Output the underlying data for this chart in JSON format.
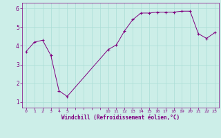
{
  "x": [
    0,
    1,
    2,
    3,
    4,
    5,
    10,
    11,
    12,
    13,
    14,
    15,
    16,
    17,
    18,
    19,
    20,
    21,
    22,
    23
  ],
  "y": [
    3.7,
    4.2,
    4.3,
    3.5,
    1.6,
    1.3,
    3.8,
    4.05,
    4.8,
    5.4,
    5.75,
    5.75,
    5.8,
    5.8,
    5.8,
    5.85,
    5.85,
    4.65,
    4.4,
    4.7
  ],
  "line_color": "#800080",
  "bg_color": "#cceee8",
  "grid_color": "#aaddd6",
  "xlabel": "Windchill (Refroidissement éolien,°C)",
  "xlabel_color": "#800080",
  "ylabel_ticks": [
    1,
    2,
    3,
    4,
    5,
    6
  ],
  "ylim": [
    0.7,
    6.3
  ],
  "xlim": [
    -0.5,
    23.5
  ],
  "marker": "+"
}
